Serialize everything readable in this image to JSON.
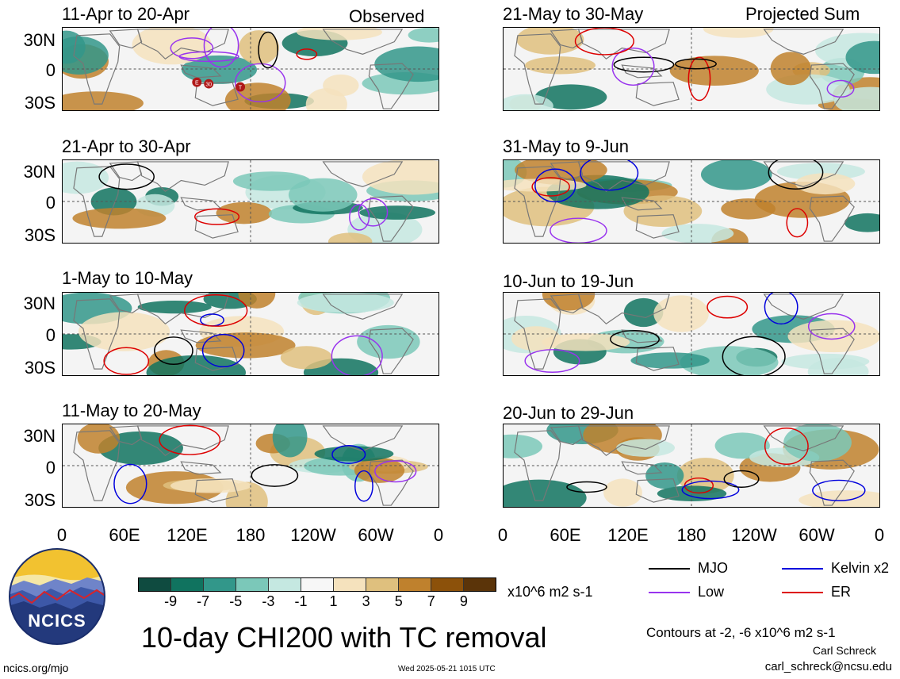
{
  "panels": [
    {
      "title": "11-Apr to 20-Apr",
      "tag": "Observed"
    },
    {
      "title": "21-Apr to 30-Apr",
      "tag": ""
    },
    {
      "title": "1-May to 10-May",
      "tag": ""
    },
    {
      "title": "11-May to 20-May",
      "tag": ""
    },
    {
      "title": "21-May to 30-May",
      "tag": "Projected Sum"
    },
    {
      "title": "31-May to 9-Jun",
      "tag": ""
    },
    {
      "title": "10-Jun to 19-Jun",
      "tag": ""
    },
    {
      "title": "20-Jun to 29-Jun",
      "tag": ""
    }
  ],
  "lat_labels": [
    "30N",
    "0",
    "30S"
  ],
  "lon_labels": [
    "0",
    "60E",
    "120E",
    "180",
    "120W",
    "60W",
    "0"
  ],
  "colorbar": {
    "labels": [
      "-9",
      "-7",
      "-5",
      "-3",
      "-1",
      "1",
      "3",
      "5",
      "7",
      "9"
    ],
    "colors": [
      "#0f4b40",
      "#10735f",
      "#32978a",
      "#7bc8b9",
      "#c5e8e1",
      "#f7f7f7",
      "#f5e2bd",
      "#dfc07e",
      "#bf812d",
      "#8c510a",
      "#5b3409"
    ],
    "units": "x10^6 m2 s-1"
  },
  "main_title": "10-day CHI200 with TC removal",
  "legend": [
    {
      "label": "MJO",
      "color": "#000000"
    },
    {
      "label": "Kelvin x2",
      "color": "#0000dd"
    },
    {
      "label": "Low",
      "color": "#9933ee"
    },
    {
      "label": "ER",
      "color": "#dd0000"
    }
  ],
  "contours_note": "Contours at -2, -6 x10^6 m2 s-1",
  "author": "Carl Schreck",
  "email": "carl_schreck@ncsu.edu",
  "url": "ncics.org/mjo",
  "timestamp": "Wed 2025-05-21 1015 UTC",
  "logo_text": "NCICS",
  "tc_markers": [
    "E",
    "30",
    "T"
  ]
}
